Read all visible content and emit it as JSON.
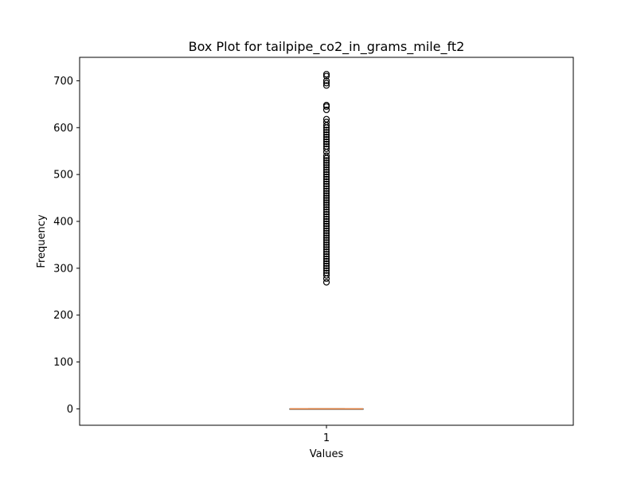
{
  "chart_data": {
    "type": "box",
    "title": "Box Plot for tailpipe_co2_in_grams_mile_ft2",
    "xlabel": "Values",
    "ylabel": "Frequency",
    "categories": [
      "1"
    ],
    "ylim": [
      -35,
      750
    ],
    "yticks": [
      0,
      100,
      200,
      300,
      400,
      500,
      600,
      700
    ],
    "grid": false,
    "boxes": [
      {
        "label": "1",
        "q1": 0,
        "median": 0,
        "q3": 0,
        "whisker_low": 0,
        "whisker_high": 0,
        "outliers": [
          270,
          278,
          285,
          290,
          295,
          300,
          305,
          310,
          315,
          320,
          325,
          330,
          335,
          340,
          345,
          350,
          355,
          360,
          365,
          370,
          375,
          380,
          385,
          390,
          395,
          400,
          405,
          410,
          415,
          420,
          425,
          430,
          435,
          440,
          445,
          450,
          455,
          460,
          465,
          470,
          475,
          480,
          485,
          490,
          495,
          500,
          505,
          510,
          515,
          520,
          525,
          530,
          535,
          540,
          548,
          555,
          560,
          565,
          570,
          575,
          580,
          585,
          590,
          595,
          600,
          605,
          612,
          618,
          638,
          645,
          648,
          690,
          695,
          700,
          710,
          714
        ]
      }
    ],
    "colors": {
      "box": "#000000",
      "median": "#e07b39",
      "outlier": "#000000",
      "axes": "#000000"
    }
  }
}
